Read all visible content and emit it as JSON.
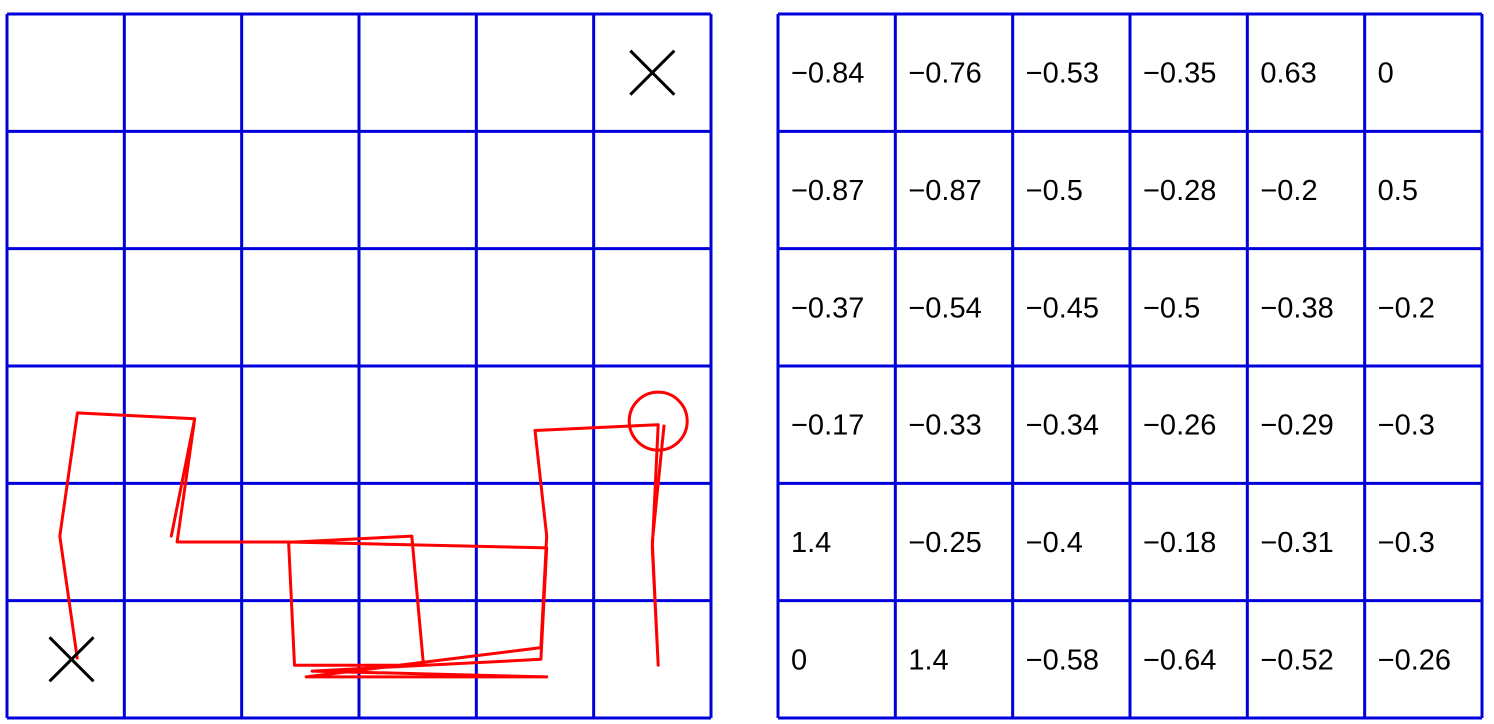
{
  "grid": {
    "rows": 6,
    "cols": 6,
    "line_color": "#0000dd"
  },
  "trajectory": {
    "color": "#ff0000",
    "start_marker": "x-icon",
    "goal_marker": "x-icon",
    "current_marker": "circle",
    "path_cells": [
      [
        0.6,
        5.5
      ],
      [
        0.45,
        4.45
      ],
      [
        0.6,
        3.4
      ],
      [
        1.6,
        3.45
      ],
      [
        1.4,
        4.45
      ],
      [
        1.6,
        3.45
      ],
      [
        1.45,
        4.5
      ],
      [
        2.45,
        4.5
      ],
      [
        3.45,
        4.45
      ],
      [
        3.55,
        5.55
      ],
      [
        2.45,
        5.55
      ],
      [
        2.4,
        4.5
      ],
      [
        4.6,
        4.55
      ],
      [
        4.55,
        5.5
      ],
      [
        2.6,
        5.6
      ],
      [
        4.6,
        5.65
      ],
      [
        2.55,
        5.65
      ],
      [
        4.55,
        5.4
      ],
      [
        4.6,
        4.45
      ],
      [
        4.5,
        3.55
      ],
      [
        5.55,
        3.5
      ],
      [
        5.5,
        4.55
      ],
      [
        5.55,
        5.55
      ],
      [
        5.5,
        4.5
      ],
      [
        5.6,
        3.5
      ]
    ],
    "start_cell": [
      0.55,
      5.5
    ],
    "goal_cell": [
      5.5,
      0.5
    ],
    "current_cell": [
      5.55,
      3.47
    ]
  },
  "values": [
    [
      "−0.84",
      "−0.76",
      "−0.53",
      "−0.35",
      "0.63",
      "0"
    ],
    [
      "−0.87",
      "−0.87",
      "−0.5",
      "−0.28",
      "−0.2",
      "0.5"
    ],
    [
      "−0.37",
      "−0.54",
      "−0.45",
      "−0.5",
      "−0.38",
      "−0.2"
    ],
    [
      "−0.17",
      "−0.33",
      "−0.34",
      "−0.26",
      "−0.29",
      "−0.3"
    ],
    [
      "1.4",
      "−0.25",
      "−0.4",
      "−0.18",
      "−0.31",
      "−0.3"
    ],
    [
      "0",
      "1.4",
      "−0.58",
      "−0.64",
      "−0.52",
      "−0.26"
    ]
  ]
}
